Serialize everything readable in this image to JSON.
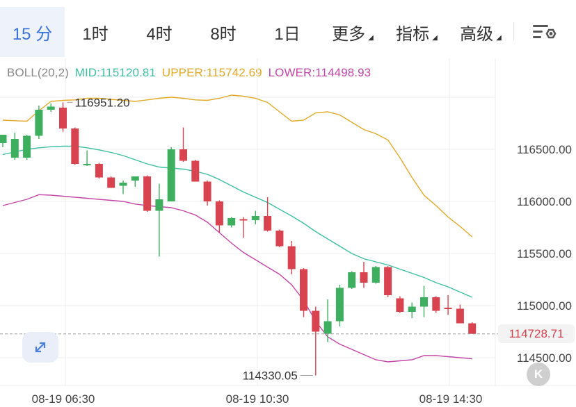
{
  "tabs": [
    {
      "label": "15 分",
      "active": true
    },
    {
      "label": "1时",
      "active": false
    },
    {
      "label": "4时",
      "active": false
    },
    {
      "label": "8时",
      "active": false
    },
    {
      "label": "1日",
      "active": false
    },
    {
      "label": "更多",
      "active": false,
      "dropdown": true
    },
    {
      "label": "指标",
      "active": false,
      "dropdown": true
    },
    {
      "label": "高级",
      "active": false,
      "dropdown": true
    }
  ],
  "settings_icon": "chart-settings-icon",
  "legend": {
    "name": "BOLL(20,2)",
    "mid": "MID:115120.81",
    "upper": "UPPER:115742.69",
    "lower": "LOWER:114498.93"
  },
  "colors": {
    "active_tab": "#3a73d8",
    "up": "#3eae5f",
    "down": "#d9434f",
    "mid": "#3cbfa0",
    "upper": "#e3a926",
    "lower": "#c445a6",
    "last_price": "#d63f4d"
  },
  "price_tag": "114728.71",
  "k_button": "K",
  "expand_icon": "expand-arrows-icon",
  "chart_data": {
    "type": "candlestick",
    "y_axis_ticks": [
      116500,
      116000,
      115500,
      115000,
      114500
    ],
    "y_axis_labels": [
      "116500.00",
      "116000.00",
      "115500.00",
      "115000.00",
      "114500.00"
    ],
    "ylim": [
      114250,
      117100
    ],
    "x_axis_labels": [
      {
        "index": 3,
        "label": "08-19 06:30"
      },
      {
        "index": 19,
        "label": "08-19 10:30"
      },
      {
        "index": 35,
        "label": "08-19 14:30"
      }
    ],
    "last_price": 114728.71,
    "high_annotation": {
      "index": 5,
      "value": 116951.2,
      "label": "116951.20"
    },
    "low_annotation": {
      "index": 26,
      "value": 114330.05,
      "label": "114330.05"
    },
    "candles": [
      {
        "o": 116560,
        "h": 116640,
        "l": 116520,
        "c": 116640
      },
      {
        "o": 116420,
        "h": 116660,
        "l": 116400,
        "c": 116600
      },
      {
        "o": 116420,
        "h": 116640,
        "l": 116400,
        "c": 116630
      },
      {
        "o": 116630,
        "h": 116920,
        "l": 116600,
        "c": 116880
      },
      {
        "o": 116880,
        "h": 116940,
        "l": 116860,
        "c": 116910
      },
      {
        "o": 116900,
        "h": 116951.2,
        "l": 116670,
        "c": 116700
      },
      {
        "o": 116700,
        "h": 116710,
        "l": 116350,
        "c": 116360
      },
      {
        "o": 116350,
        "h": 116490,
        "l": 116340,
        "c": 116360
      },
      {
        "o": 116360,
        "h": 116370,
        "l": 116220,
        "c": 116230
      },
      {
        "o": 116230,
        "h": 116240,
        "l": 116130,
        "c": 116130
      },
      {
        "o": 116150,
        "h": 116200,
        "l": 116070,
        "c": 116180
      },
      {
        "o": 116200,
        "h": 116230,
        "l": 116140,
        "c": 116240
      },
      {
        "o": 116240,
        "h": 116250,
        "l": 115900,
        "c": 115910
      },
      {
        "o": 115910,
        "h": 116170,
        "l": 115470,
        "c": 116020
      },
      {
        "o": 116000,
        "h": 116520,
        "l": 116000,
        "c": 116500
      },
      {
        "o": 116500,
        "h": 116710,
        "l": 116380,
        "c": 116390
      },
      {
        "o": 116390,
        "h": 116400,
        "l": 116200,
        "c": 116190
      },
      {
        "o": 116190,
        "h": 116200,
        "l": 115960,
        "c": 116000
      },
      {
        "o": 116000,
        "h": 116010,
        "l": 115700,
        "c": 115770
      },
      {
        "o": 115770,
        "h": 115850,
        "l": 115750,
        "c": 115840
      },
      {
        "o": 115830,
        "h": 115850,
        "l": 115650,
        "c": 115820
      },
      {
        "o": 115820,
        "h": 115910,
        "l": 115780,
        "c": 115860
      },
      {
        "o": 115860,
        "h": 116040,
        "l": 115710,
        "c": 115720
      },
      {
        "o": 115720,
        "h": 115730,
        "l": 115560,
        "c": 115570
      },
      {
        "o": 115570,
        "h": 115620,
        "l": 115300,
        "c": 115350
      },
      {
        "o": 115350,
        "h": 115360,
        "l": 114890,
        "c": 114950
      },
      {
        "o": 114950,
        "h": 114990,
        "l": 114330.05,
        "c": 114750
      },
      {
        "o": 114730,
        "h": 115060,
        "l": 114650,
        "c": 114850
      },
      {
        "o": 114850,
        "h": 115200,
        "l": 114800,
        "c": 115170
      },
      {
        "o": 115170,
        "h": 115330,
        "l": 115160,
        "c": 115320
      },
      {
        "o": 115320,
        "h": 115420,
        "l": 115170,
        "c": 115220
      },
      {
        "o": 115220,
        "h": 115380,
        "l": 115210,
        "c": 115370
      },
      {
        "o": 115370,
        "h": 115380,
        "l": 115080,
        "c": 115100
      },
      {
        "o": 115070,
        "h": 115090,
        "l": 114930,
        "c": 114940
      },
      {
        "o": 114940,
        "h": 115030,
        "l": 114880,
        "c": 114990
      },
      {
        "o": 114990,
        "h": 115190,
        "l": 114890,
        "c": 115080
      },
      {
        "o": 115080,
        "h": 115090,
        "l": 114930,
        "c": 114950
      },
      {
        "o": 114980,
        "h": 115100,
        "l": 114910,
        "c": 114970
      },
      {
        "o": 114970,
        "h": 115010,
        "l": 114830,
        "c": 114830
      },
      {
        "o": 114830,
        "h": 114840,
        "l": 114728.71,
        "c": 114728.71
      }
    ],
    "series": [
      {
        "name": "MID",
        "values": [
          116450,
          116475,
          116500,
          116515,
          116525,
          116530,
          116530,
          116515,
          116495,
          116470,
          116440,
          116400,
          116360,
          116330,
          116320,
          116310,
          116290,
          116260,
          116210,
          116150,
          116090,
          116040,
          115990,
          115925,
          115860,
          115790,
          115710,
          115640,
          115570,
          115500,
          115450,
          115420,
          115390,
          115350,
          115310,
          115270,
          115220,
          115180,
          115130,
          115080
        ]
      },
      {
        "name": "UPPER",
        "values": [
          116780,
          116775,
          116770,
          116870,
          116960,
          116970,
          116975,
          116990,
          116990,
          116980,
          116970,
          116960,
          116975,
          116990,
          117000,
          116990,
          116975,
          116970,
          116990,
          117020,
          117010,
          116990,
          116950,
          116860,
          116770,
          116780,
          116850,
          116860,
          116830,
          116760,
          116690,
          116650,
          116590,
          116420,
          116230,
          116060,
          115960,
          115850,
          115760,
          115660
        ]
      },
      {
        "name": "LOWER",
        "values": [
          115960,
          115990,
          116020,
          116065,
          116060,
          116050,
          116040,
          116030,
          116020,
          116010,
          116000,
          115975,
          115960,
          115950,
          115940,
          115910,
          115870,
          115800,
          115700,
          115600,
          115510,
          115440,
          115370,
          115300,
          115200,
          115050,
          114850,
          114700,
          114630,
          114580,
          114530,
          114480,
          114460,
          114470,
          114480,
          114520,
          114520,
          114510,
          114500,
          114490
        ]
      }
    ]
  }
}
